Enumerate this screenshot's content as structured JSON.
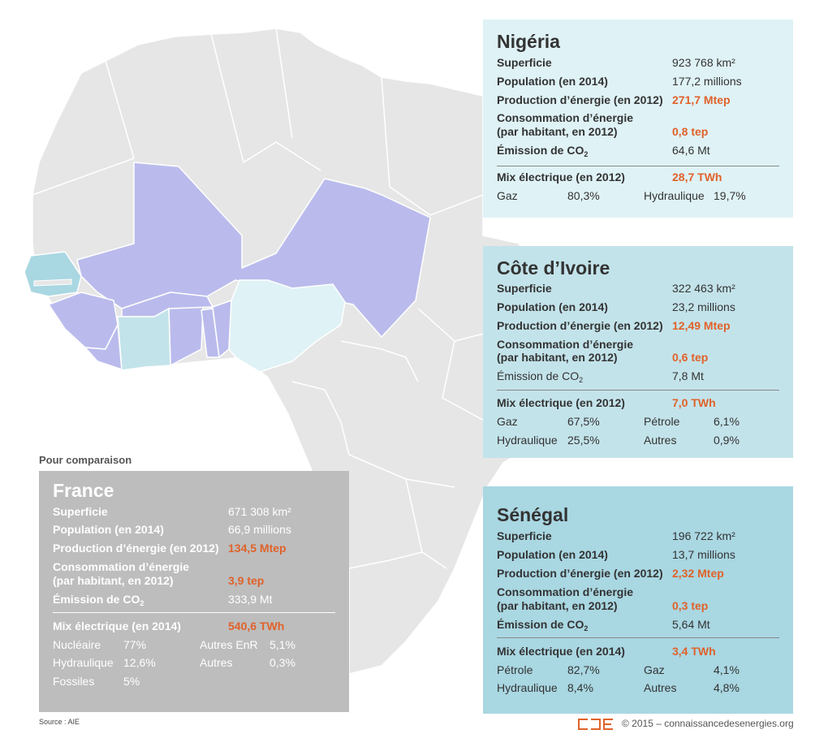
{
  "colors": {
    "land": "#e6e6e6",
    "border": "#ffffff",
    "ecowas": "#babbec",
    "nigeria": "#dff2f6",
    "cote_divoire": "#c3e3ea",
    "senegal": "#a9d7e2",
    "france_card": "#bdbdbd",
    "highlight": "#e0622a"
  },
  "cards": {
    "nigeria": {
      "title": "Nigéria",
      "superficie_label": "Superficie",
      "superficie": "923 768 km²",
      "population_label": "Population (en 2014)",
      "population": "177,2 millions",
      "production_label": "Production d’énergie (en 2012)",
      "production": "271,7 Mtep",
      "conso_label_1": "Consommation d’énergie",
      "conso_label_2": "(par habitant, en 2012)",
      "conso": "0,8 tep",
      "emission_label": "Émission de CO",
      "emission_sub": "2",
      "emission": "64,6 Mt",
      "mix_label": "Mix électrique (en 2012)",
      "mix_total": "28,7 TWh",
      "mix": [
        {
          "name": "Gaz",
          "value": "80,3%"
        },
        {
          "name": "Hydraulique",
          "value": "19,7%"
        }
      ]
    },
    "cote_divoire": {
      "title": "Côte d’Ivoire",
      "superficie_label": "Superficie",
      "superficie": "322 463 km²",
      "population_label": "Population (en 2014)",
      "population": "23,2 millions",
      "production_label": "Production d’énergie (en 2012)",
      "production": "12,49 Mtep",
      "conso_label_1": "Consommation d’énergie",
      "conso_label_2": "(par habitant, en 2012)",
      "conso": "0,6 tep",
      "emission_label": "Émission de CO",
      "emission_sub": "2",
      "emission": "7,8 Mt",
      "mix_label": "Mix électrique (en 2012)",
      "mix_total": "7,0 TWh",
      "mix": [
        {
          "name": "Gaz",
          "value": "67,5%"
        },
        {
          "name": "Pétrole",
          "value": "6,1%"
        },
        {
          "name": "Hydraulique",
          "value": "25,5%"
        },
        {
          "name": "Autres",
          "value": "0,9%"
        }
      ]
    },
    "senegal": {
      "title": "Sénégal",
      "superficie_label": "Superficie",
      "superficie": "196 722 km²",
      "population_label": "Population (en 2014)",
      "population": "13,7 millions",
      "production_label": "Production d’énergie (en 2012)",
      "production": "2,32 Mtep",
      "conso_label_1": "Consommation d’énergie",
      "conso_label_2": "(par habitant, en 2012)",
      "conso": "0,3 tep",
      "emission_label": "Émission de CO",
      "emission_sub": "2",
      "emission": "5,64 Mt",
      "mix_label": "Mix électrique (en 2014)",
      "mix_total": "3,4 TWh",
      "mix": [
        {
          "name": "Pétrole",
          "value": "82,7%"
        },
        {
          "name": "Gaz",
          "value": "4,1%"
        },
        {
          "name": "Hydraulique",
          "value": "8,4%"
        },
        {
          "name": "Autres",
          "value": "4,8%"
        }
      ]
    },
    "france": {
      "caption": "Pour comparaison",
      "title": "France",
      "superficie_label": "Superficie",
      "superficie": "671 308 km²",
      "population_label": "Population (en 2014)",
      "population": "66,9 millions",
      "production_label": "Production d’énergie (en 2012)",
      "production": "134,5 Mtep",
      "conso_label_1": "Consommation d’énergie",
      "conso_label_2": "(par habitant, en 2012)",
      "conso": "3,9 tep",
      "emission_label": "Émission de CO",
      "emission_sub": "2",
      "emission": "333,9 Mt",
      "mix_label": "Mix électrique (en 2014)",
      "mix_total": "540,6 TWh",
      "mix": [
        {
          "name": "Nucléaire",
          "value": "77%"
        },
        {
          "name": "Autres EnR",
          "value": "5,1%"
        },
        {
          "name": "Hydraulique",
          "value": "12,6%"
        },
        {
          "name": "Autres",
          "value": "0,3%"
        },
        {
          "name": "Fossiles",
          "value": "5%"
        }
      ]
    }
  },
  "footer": {
    "source": "Source : AIE",
    "copyright": "© 2015 – connaissancedesenergies.org"
  }
}
